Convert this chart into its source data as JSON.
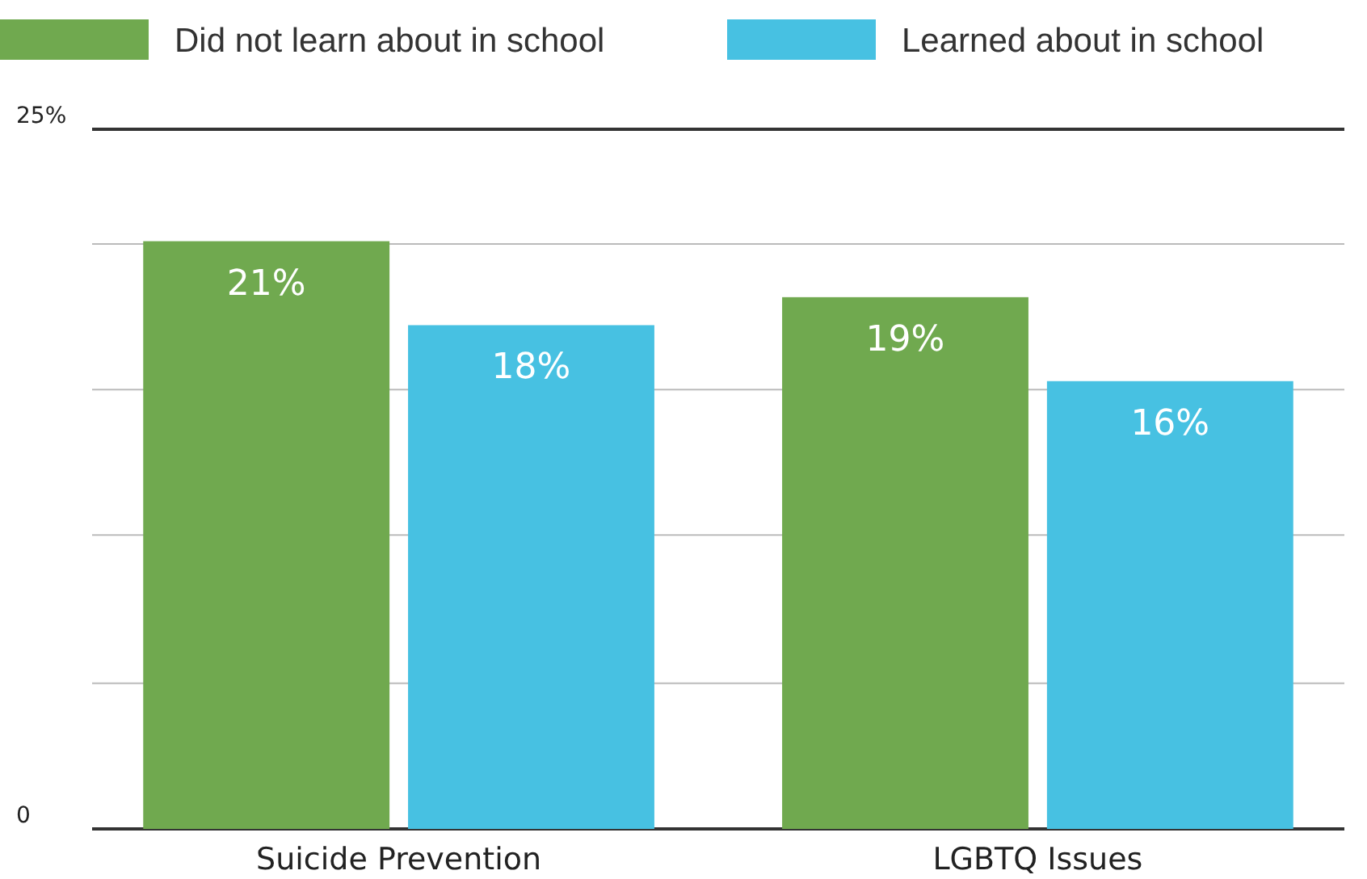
{
  "chart_data": {
    "type": "bar",
    "categories": [
      "Suicide Prevention",
      "LGBTQ Issues"
    ],
    "series": [
      {
        "name": "Did not learn about in school",
        "color": "#70a94f",
        "values": [
          21,
          19
        ],
        "value_labels": [
          "21%",
          "19%"
        ]
      },
      {
        "name": "Learned about in school",
        "color": "#47c1e2",
        "values": [
          18,
          16
        ],
        "value_labels": [
          "18%",
          "16%"
        ]
      }
    ],
    "ylim": [
      0,
      25
    ],
    "yticks": [
      {
        "value": 0,
        "label": "0"
      },
      {
        "value": 5.2,
        "label": null
      },
      {
        "value": 10.5,
        "label": null
      },
      {
        "value": 15.7,
        "label": null
      },
      {
        "value": 20.9,
        "label": null
      },
      {
        "value": 25,
        "label": "25%"
      }
    ],
    "grid": "y",
    "legend": "top"
  }
}
